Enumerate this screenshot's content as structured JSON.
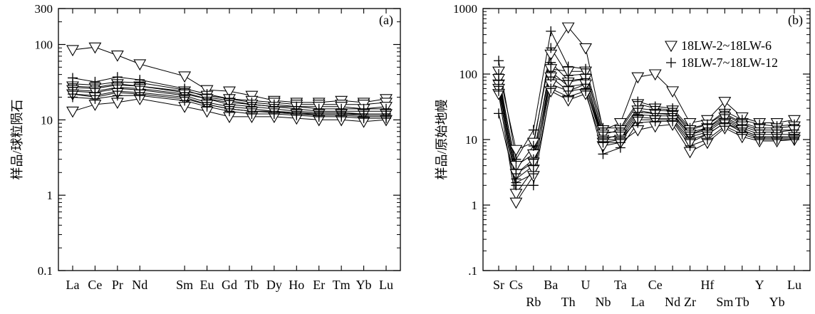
{
  "chart_data": [
    {
      "type": "line",
      "panel_label": "(a)",
      "xlabel": "",
      "ylabel": "样品/球粒陨石",
      "y_scale": "log",
      "ylim": [
        0.1,
        300
      ],
      "y_ticks": [
        0.1,
        1,
        10,
        100,
        300
      ],
      "y_tick_labels": [
        "0.1",
        "1",
        "10",
        "100",
        "300"
      ],
      "categories": [
        "La",
        "Ce",
        "Pr",
        "Nd",
        "Sm",
        "Eu",
        "Gd",
        "Tb",
        "Dy",
        "Ho",
        "Er",
        "Tm",
        "Yb",
        "Lu"
      ],
      "x_positions": [
        0,
        1,
        2,
        3,
        5,
        6,
        7,
        8,
        9,
        10,
        11,
        12,
        13,
        14
      ],
      "series": [
        {
          "marker": "triangle-down",
          "values": [
            85,
            92,
            72,
            55,
            38,
            25,
            24,
            21,
            18,
            17,
            17,
            18,
            17,
            19
          ]
        },
        {
          "marker": "triangle-down",
          "values": [
            28,
            27,
            30,
            28,
            24,
            21,
            19,
            18,
            17,
            16,
            16,
            16,
            16,
            17
          ]
        },
        {
          "marker": "triangle-down",
          "values": [
            25,
            24,
            27,
            26,
            22,
            19,
            17,
            16,
            15,
            15,
            15,
            15,
            14,
            15
          ]
        },
        {
          "marker": "triangle-down",
          "values": [
            22,
            20,
            23,
            22,
            19,
            16,
            14,
            13,
            13,
            12,
            12,
            12,
            12,
            12
          ]
        },
        {
          "marker": "triangle-down",
          "values": [
            13,
            16,
            17,
            19,
            15,
            13,
            11,
            11,
            11,
            10.5,
            10,
            10,
            9.5,
            10
          ]
        },
        {
          "marker": "plus",
          "values": [
            36,
            32,
            37,
            34,
            26,
            22,
            19,
            17,
            16,
            15,
            14,
            14,
            14,
            14
          ]
        },
        {
          "marker": "plus",
          "values": [
            30,
            29,
            32,
            31,
            25,
            20,
            18,
            16,
            15,
            14,
            13,
            13,
            13,
            13
          ]
        },
        {
          "marker": "plus",
          "values": [
            27,
            26,
            29,
            28,
            23,
            19,
            16,
            15,
            14,
            13,
            12.5,
            12.5,
            12,
            12
          ]
        },
        {
          "marker": "plus",
          "values": [
            24,
            23,
            26,
            25,
            21,
            17,
            15,
            14,
            13,
            12.5,
            12,
            12,
            11.5,
            11.5
          ]
        },
        {
          "marker": "plus",
          "values": [
            22,
            21,
            24,
            23,
            20,
            16,
            14,
            13,
            12.5,
            12,
            11.5,
            11.5,
            11,
            11
          ]
        },
        {
          "marker": "plus",
          "values": [
            20,
            19,
            21,
            21,
            18,
            15,
            13,
            12,
            12,
            11.5,
            11,
            11,
            10.5,
            10.5
          ]
        }
      ]
    },
    {
      "type": "line",
      "panel_label": "(b)",
      "xlabel": "",
      "ylabel": "样品/原始地幔",
      "y_scale": "log",
      "ylim": [
        0.1,
        1000
      ],
      "y_ticks": [
        0.1,
        1,
        10,
        100,
        1000
      ],
      "y_tick_labels": [
        ".1",
        "1",
        "10",
        "100",
        "1000"
      ],
      "categories": [
        "Sr",
        "Cs",
        "Rb",
        "Ba",
        "Th",
        "U",
        "Nb",
        "Ta",
        "La",
        "Ce",
        "Nd",
        "Zr",
        "Hf",
        "Sm",
        "Tb",
        "Y",
        "Yb",
        "Lu"
      ],
      "category_rows": [
        "top",
        "top",
        "bottom",
        "top",
        "bottom",
        "top",
        "bottom",
        "top",
        "bottom",
        "top",
        "bottom",
        "bottom",
        "top",
        "bottom",
        "bottom",
        "top",
        "bottom",
        "top"
      ],
      "legend": {
        "position": "top-right",
        "entries": [
          {
            "marker": "triangle-down",
            "label": "18LW-2~18LW-6"
          },
          {
            "marker": "plus",
            "label": "18LW-7~18LW-12"
          }
        ]
      },
      "series": [
        {
          "marker": "triangle-down",
          "values": [
            110,
            7,
            9,
            200,
            520,
            250,
            14,
            18,
            90,
            100,
            55,
            18,
            20,
            38,
            22,
            18,
            18,
            20
          ]
        },
        {
          "marker": "triangle-down",
          "values": [
            85,
            4,
            6,
            120,
            110,
            110,
            12,
            14,
            35,
            30,
            28,
            14,
            17,
            25,
            18,
            15,
            15,
            16
          ]
        },
        {
          "marker": "triangle-down",
          "values": [
            70,
            3,
            4.5,
            90,
            75,
            85,
            10,
            12,
            28,
            25,
            24,
            12,
            15,
            22,
            16,
            13,
            13,
            14
          ]
        },
        {
          "marker": "triangle-down",
          "values": [
            60,
            1.5,
            3.5,
            70,
            55,
            70,
            9,
            10,
            20,
            20,
            20,
            9,
            12,
            18,
            14,
            11,
            11,
            11
          ]
        },
        {
          "marker": "triangle-down",
          "values": [
            50,
            1.1,
            2.8,
            55,
            40,
            50,
            8,
            9,
            14,
            16,
            17,
            6.5,
            9,
            15,
            11,
            9.5,
            9.5,
            10
          ]
        },
        {
          "marker": "plus",
          "values": [
            160,
            5,
            14,
            450,
            130,
            120,
            15,
            15,
            38,
            32,
            30,
            15,
            17,
            27,
            20,
            17,
            16,
            17
          ]
        },
        {
          "marker": "plus",
          "values": [
            100,
            3.5,
            8,
            250,
            95,
            100,
            13,
            13,
            30,
            28,
            27,
            13,
            15,
            24,
            17,
            14,
            14,
            14
          ]
        },
        {
          "marker": "plus",
          "values": [
            80,
            3,
            5,
            150,
            80,
            85,
            11,
            11,
            26,
            25,
            25,
            12,
            14,
            21,
            15,
            12,
            12,
            12
          ]
        },
        {
          "marker": "plus",
          "values": [
            65,
            2.5,
            4,
            110,
            65,
            70,
            10,
            10,
            24,
            23,
            23,
            11,
            13,
            20,
            14,
            11,
            11,
            11
          ]
        },
        {
          "marker": "plus",
          "values": [
            55,
            2.2,
            3,
            90,
            55,
            60,
            9,
            9,
            22,
            21,
            21,
            10,
            12,
            18,
            13,
            10.5,
            10.5,
            10.5
          ]
        },
        {
          "marker": "plus",
          "values": [
            25,
            2,
            2,
            60,
            45,
            55,
            6,
            7.5,
            18,
            19,
            19,
            8,
            10,
            16,
            12,
            10,
            10,
            10
          ]
        }
      ]
    }
  ]
}
